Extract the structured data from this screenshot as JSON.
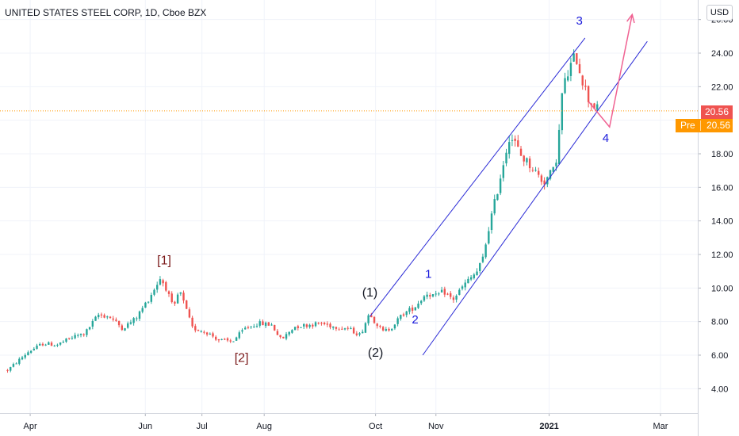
{
  "header": {
    "title": "UNITED STATES STEEL CORP, 1D, Cboe BZX",
    "currency": "USD"
  },
  "price_scale": {
    "last_price": "20.56",
    "premarket_label": "Pre",
    "premarket_price": "20.56",
    "last_price_color": "#ef5350",
    "premarket_color": "#ff9800"
  },
  "chart_data": {
    "type": "candlestick",
    "instrument": "UNITED STATES STEEL CORP",
    "interval": "1D",
    "exchange": "Cboe BZX",
    "y_ticks": [
      "4.00",
      "6.00",
      "8.00",
      "10.00",
      "12.00",
      "14.00",
      "16.00",
      "18.00",
      "20.00",
      "22.00",
      "24.00",
      "26.00"
    ],
    "x_ticks": [
      "Apr",
      "Jun",
      "Jul",
      "Aug",
      "Oct",
      "Nov",
      "2021",
      "Mar"
    ],
    "ylim": [
      2.4,
      26.9
    ],
    "grid": true,
    "last_price": 20.56,
    "up_color": "#26a69a",
    "down_color": "#ef5350",
    "series": [
      {
        "d": "2020-03-20",
        "v": 5.1
      },
      {
        "d": "2020-03-31",
        "v": 6.2
      },
      {
        "d": "2020-04-08",
        "v": 6.7
      },
      {
        "d": "2020-04-15",
        "v": 6.6
      },
      {
        "d": "2020-04-24",
        "v": 7.1
      },
      {
        "d": "2020-04-30",
        "v": 7.3
      },
      {
        "d": "2020-05-07",
        "v": 8.4
      },
      {
        "d": "2020-05-13",
        "v": 8.3
      },
      {
        "d": "2020-05-20",
        "v": 7.6
      },
      {
        "d": "2020-05-27",
        "v": 8.2
      },
      {
        "d": "2020-06-03",
        "v": 9.4
      },
      {
        "d": "2020-06-09",
        "v": 10.6
      },
      {
        "d": "2020-06-12",
        "v": 10.0
      },
      {
        "d": "2020-06-16",
        "v": 8.7
      },
      {
        "d": "2020-06-19",
        "v": 9.9
      },
      {
        "d": "2020-06-26",
        "v": 7.6
      },
      {
        "d": "2020-07-03",
        "v": 7.4
      },
      {
        "d": "2020-07-10",
        "v": 6.9
      },
      {
        "d": "2020-07-17",
        "v": 6.8
      },
      {
        "d": "2020-07-24",
        "v": 7.6
      },
      {
        "d": "2020-07-31",
        "v": 7.9
      },
      {
        "d": "2020-08-07",
        "v": 7.8
      },
      {
        "d": "2020-08-12",
        "v": 6.9
      },
      {
        "d": "2020-08-19",
        "v": 7.7
      },
      {
        "d": "2020-08-26",
        "v": 7.8
      },
      {
        "d": "2020-09-02",
        "v": 7.9
      },
      {
        "d": "2020-09-09",
        "v": 7.7
      },
      {
        "d": "2020-09-16",
        "v": 7.6
      },
      {
        "d": "2020-09-23",
        "v": 7.2
      },
      {
        "d": "2020-09-28",
        "v": 8.6
      },
      {
        "d": "2020-09-30",
        "v": 8.1
      },
      {
        "d": "2020-10-05",
        "v": 7.4
      },
      {
        "d": "2020-10-09",
        "v": 7.6
      },
      {
        "d": "2020-10-15",
        "v": 8.4
      },
      {
        "d": "2020-10-22",
        "v": 8.9
      },
      {
        "d": "2020-10-28",
        "v": 9.7
      },
      {
        "d": "2020-11-02",
        "v": 9.5
      },
      {
        "d": "2020-11-06",
        "v": 9.8
      },
      {
        "d": "2020-11-11",
        "v": 9.3
      },
      {
        "d": "2020-11-17",
        "v": 10.2
      },
      {
        "d": "2020-11-24",
        "v": 11.0
      },
      {
        "d": "2020-11-27",
        "v": 11.8
      },
      {
        "d": "2020-11-30",
        "v": 13.6
      },
      {
        "d": "2020-12-04",
        "v": 15.5
      },
      {
        "d": "2020-12-08",
        "v": 17.6
      },
      {
        "d": "2020-12-11",
        "v": 19.1
      },
      {
        "d": "2020-12-14",
        "v": 18.6
      },
      {
        "d": "2020-12-17",
        "v": 17.9
      },
      {
        "d": "2020-12-23",
        "v": 17.2
      },
      {
        "d": "2020-12-29",
        "v": 16.3
      },
      {
        "d": "2021-01-04",
        "v": 17.1
      },
      {
        "d": "2021-01-06",
        "v": 18.9
      },
      {
        "d": "2021-01-08",
        "v": 21.8
      },
      {
        "d": "2021-01-13",
        "v": 23.4
      },
      {
        "d": "2021-01-15",
        "v": 23.9
      },
      {
        "d": "2021-01-20",
        "v": 21.9
      },
      {
        "d": "2021-01-22",
        "v": 21.2
      },
      {
        "d": "2021-01-27",
        "v": 20.6
      }
    ],
    "channel_lines": [
      {
        "from": {
          "d": "2020-09-28",
          "v": 8.3
        },
        "to": {
          "d": "2021-01-20",
          "v": 24.9
        }
      },
      {
        "from": {
          "d": "2020-10-26",
          "v": 6.0
        },
        "to": {
          "d": "2021-02-22",
          "v": 24.7
        }
      }
    ],
    "projection": [
      {
        "d": "2021-01-22",
        "v": 21.1
      },
      {
        "d": "2021-02-02",
        "v": 19.6
      },
      {
        "d": "2021-02-14",
        "v": 26.3
      }
    ],
    "wave_labels": [
      {
        "text": "[1]",
        "d": "2020-06-11",
        "v": 11.4,
        "color": "#7b1a1a"
      },
      {
        "text": "[2]",
        "d": "2020-07-22",
        "v": 5.6,
        "color": "#7b1a1a"
      },
      {
        "text": "(1)",
        "d": "2020-09-28",
        "v": 9.5,
        "color": "#131722"
      },
      {
        "text": "(2)",
        "d": "2020-10-01",
        "v": 5.9,
        "color": "#131722"
      },
      {
        "text": "1",
        "d": "2020-10-29",
        "v": 10.6,
        "color": "#1a1adb"
      },
      {
        "text": "2",
        "d": "2020-10-22",
        "v": 7.9,
        "color": "#1a1adb"
      },
      {
        "text": "3",
        "d": "2021-01-17",
        "v": 25.7,
        "color": "#1a1adb"
      },
      {
        "text": "4",
        "d": "2021-01-31",
        "v": 18.7,
        "color": "#1a1adb"
      }
    ]
  }
}
